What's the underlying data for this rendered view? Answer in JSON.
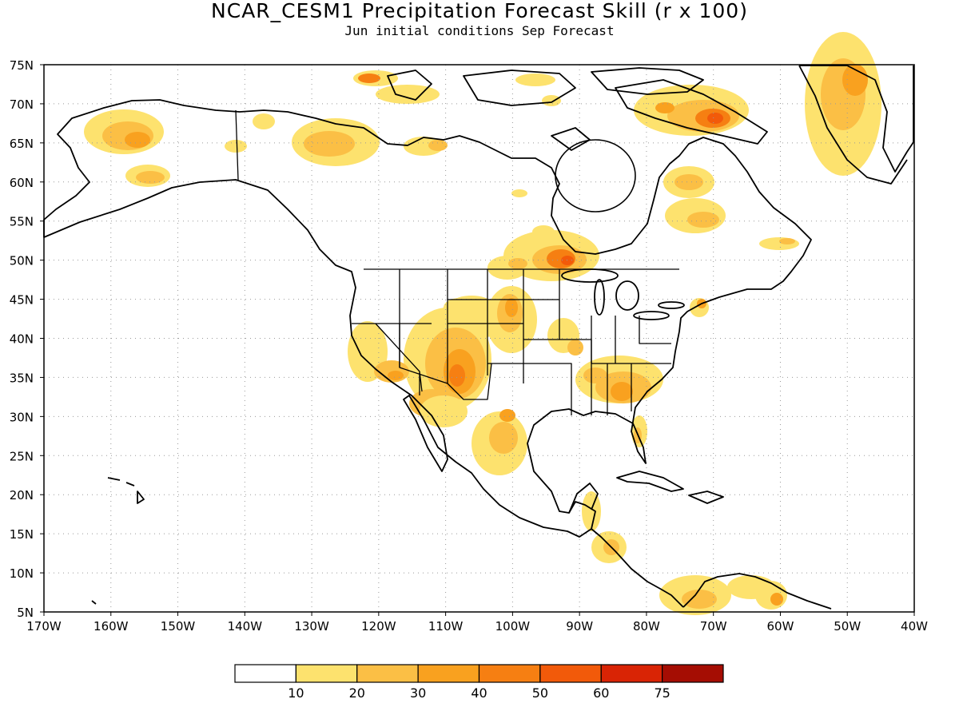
{
  "title": "NCAR_CESM1 Precipitation Forecast Skill (r x 100)",
  "subtitle": "Jun initial conditions  Sep Forecast",
  "map": {
    "lon_range": [
      -170,
      -40
    ],
    "lat_range": [
      5,
      75
    ],
    "grid": "dotted",
    "lat_labels": [
      "75N",
      "70N",
      "65N",
      "60N",
      "55N",
      "50N",
      "45N",
      "40N",
      "35N",
      "30N",
      "25N",
      "20N",
      "15N",
      "10N",
      "5N"
    ],
    "lon_labels": [
      "170W",
      "160W",
      "150W",
      "140W",
      "130W",
      "120W",
      "110W",
      "100W",
      "90W",
      "80W",
      "70W",
      "60W",
      "50W",
      "40W"
    ]
  },
  "colorbar": {
    "colors": [
      "#ffffff",
      "#fde26e",
      "#fbbf45",
      "#f9a11f",
      "#f67f12",
      "#f25a0a",
      "#d92405",
      "#a50d03"
    ],
    "labels": [
      "10",
      "20",
      "30",
      "40",
      "50",
      "60",
      "75"
    ]
  },
  "shaded_regions": [
    {
      "region": "Northern Alaska",
      "level": "20-30"
    },
    {
      "region": "Southwest Alaska",
      "level": "20-30"
    },
    {
      "region": "Yukon / NW Territories",
      "level": "20-30"
    },
    {
      "region": "Arctic islands",
      "level": "40-50"
    },
    {
      "region": "Baffin Island",
      "level": "50-60"
    },
    {
      "region": "Greenland",
      "level": "20-30"
    },
    {
      "region": "Labrador",
      "level": "30-40"
    },
    {
      "region": "Northern Ontario / Manitoba",
      "level": "50-60"
    },
    {
      "region": "Northern Plains",
      "level": "30-40"
    },
    {
      "region": "Four Corners",
      "level": "40-50"
    },
    {
      "region": "California / Nevada",
      "level": "20-30"
    },
    {
      "region": "Northern Mexico",
      "level": "30-40"
    },
    {
      "region": "Southeast US",
      "level": "30-40"
    },
    {
      "region": "Florida",
      "level": "20-30"
    },
    {
      "region": "Central America",
      "level": "20-30"
    },
    {
      "region": "Northern South America",
      "level": "20-30"
    }
  ]
}
